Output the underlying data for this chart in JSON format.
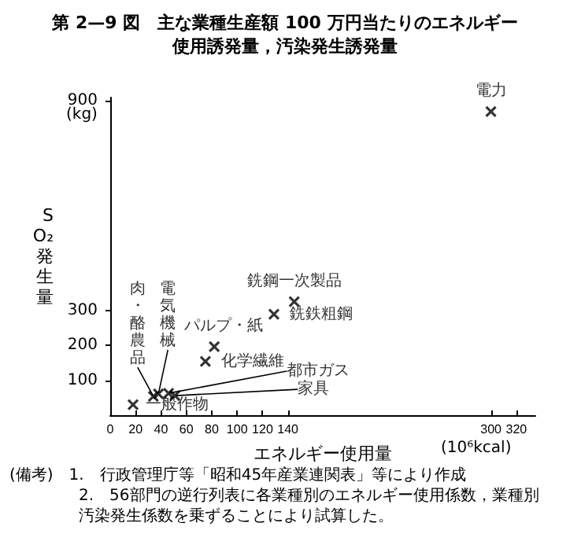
{
  "chart_data": {
    "type": "scatter",
    "title": "第 2—9 図　主な業種生産額 100 万円当たりのエネルギー",
    "subtitle": "使用誘発量，汚染発生誘発量",
    "xlabel": "エネルギー使用量",
    "ylabel": "SO₂発生量",
    "x": [
      300,
      145,
      129,
      82,
      75,
      46,
      51,
      38,
      34,
      18
    ],
    "values": [
      870,
      325,
      289,
      196,
      154,
      63,
      56,
      61,
      54,
      30
    ],
    "color": "#000000",
    "marker": "cross",
    "xlim": [
      0,
      335
    ],
    "xticks": [
      0,
      20,
      40,
      60,
      80,
      100,
      120,
      140,
      300,
      320
    ],
    "ylim": [
      0,
      910
    ],
    "yticks": [
      100,
      200,
      300,
      900
    ],
    "grid": false,
    "annotations": [
      {
        "text": "電力",
        "x": 300,
        "y": 870
      },
      {
        "text": "銑鋼一次製品",
        "x": 145,
        "y": 325
      },
      {
        "text": "銑鉄粗鋼",
        "x": 129,
        "y": 289
      },
      {
        "text": "パルプ・紙",
        "x": 82,
        "y": 196
      },
      {
        "text": "化学繊維",
        "x": 75,
        "y": 154
      },
      {
        "text": "都市ガス",
        "x": 46,
        "y": 63
      },
      {
        "text": "家具",
        "x": 51,
        "y": 56
      },
      {
        "text": "電気機械",
        "x": 38,
        "y": 61
      },
      {
        "text": "肉・酪農品",
        "x": 34,
        "y": 54
      },
      {
        "text": "一般作物",
        "x": 18,
        "y": 30
      },
      "(kg)",
      "(10⁶kcal)",
      "(備考)　1.　行政管理庁等「昭和45年産業連関表」等により作成",
      "2.　56部門の逆行列表に各業種別のエネルギー使用係数，業種別汚染発生係数を乗ずることにより試算した。"
    ]
  }
}
